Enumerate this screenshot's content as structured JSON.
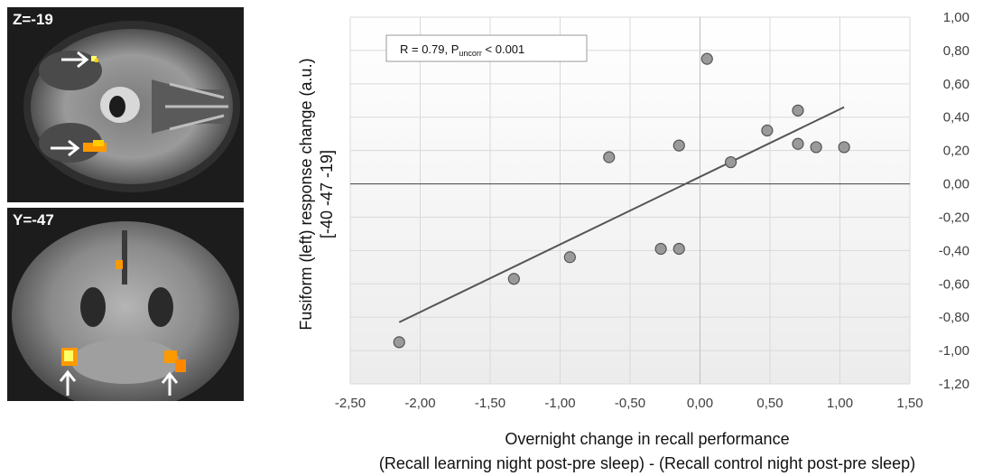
{
  "brain_panels": {
    "axial_label": "Z=-19",
    "coronal_label": "Y=-47"
  },
  "chart_data": {
    "type": "scatter",
    "x": [
      -2.15,
      -1.33,
      -0.93,
      -0.65,
      -0.28,
      -0.15,
      -0.15,
      0.05,
      0.22,
      0.48,
      0.7,
      0.7,
      0.83,
      1.03
    ],
    "y": [
      -0.95,
      -0.57,
      -0.44,
      0.16,
      -0.39,
      -0.39,
      0.23,
      0.75,
      0.13,
      0.32,
      0.44,
      0.24,
      0.22,
      0.22
    ],
    "trendline": {
      "x": [
        -2.15,
        1.03
      ],
      "y": [
        -0.83,
        0.46
      ]
    },
    "xlabel": "Overnight change in recall performance",
    "xlabel_sub": "(Recall learning night post-pre sleep) - (Recall control night post-pre sleep)",
    "ylabel_line1": "Fusiform (left) response change (a.u.)",
    "ylabel_line2": "[-40 -47 -19]",
    "xlim": [
      -2.5,
      1.5
    ],
    "ylim": [
      -1.2,
      1.0
    ],
    "x_ticks": [
      "-2,50",
      "-2,00",
      "-1,50",
      "-1,00",
      "-0,50",
      "0,00",
      "0,50",
      "1,00",
      "1,50"
    ],
    "y_ticks": [
      "1,00",
      "0,80",
      "0,60",
      "0,40",
      "0,20",
      "0,00",
      "-0,20",
      "-0,40",
      "-0,60",
      "-0,80",
      "-1,00",
      "-1,20"
    ],
    "annotation": {
      "prefix": "R = 0.79, P",
      "subscript": "uncorr",
      "suffix": " < 0.001"
    },
    "grid": true,
    "y_axis_position": "right",
    "colors": {
      "point_fill": "#9a9a9a",
      "point_stroke": "#555555",
      "trendline": "#555555",
      "grid": "#d9d9d9"
    }
  }
}
